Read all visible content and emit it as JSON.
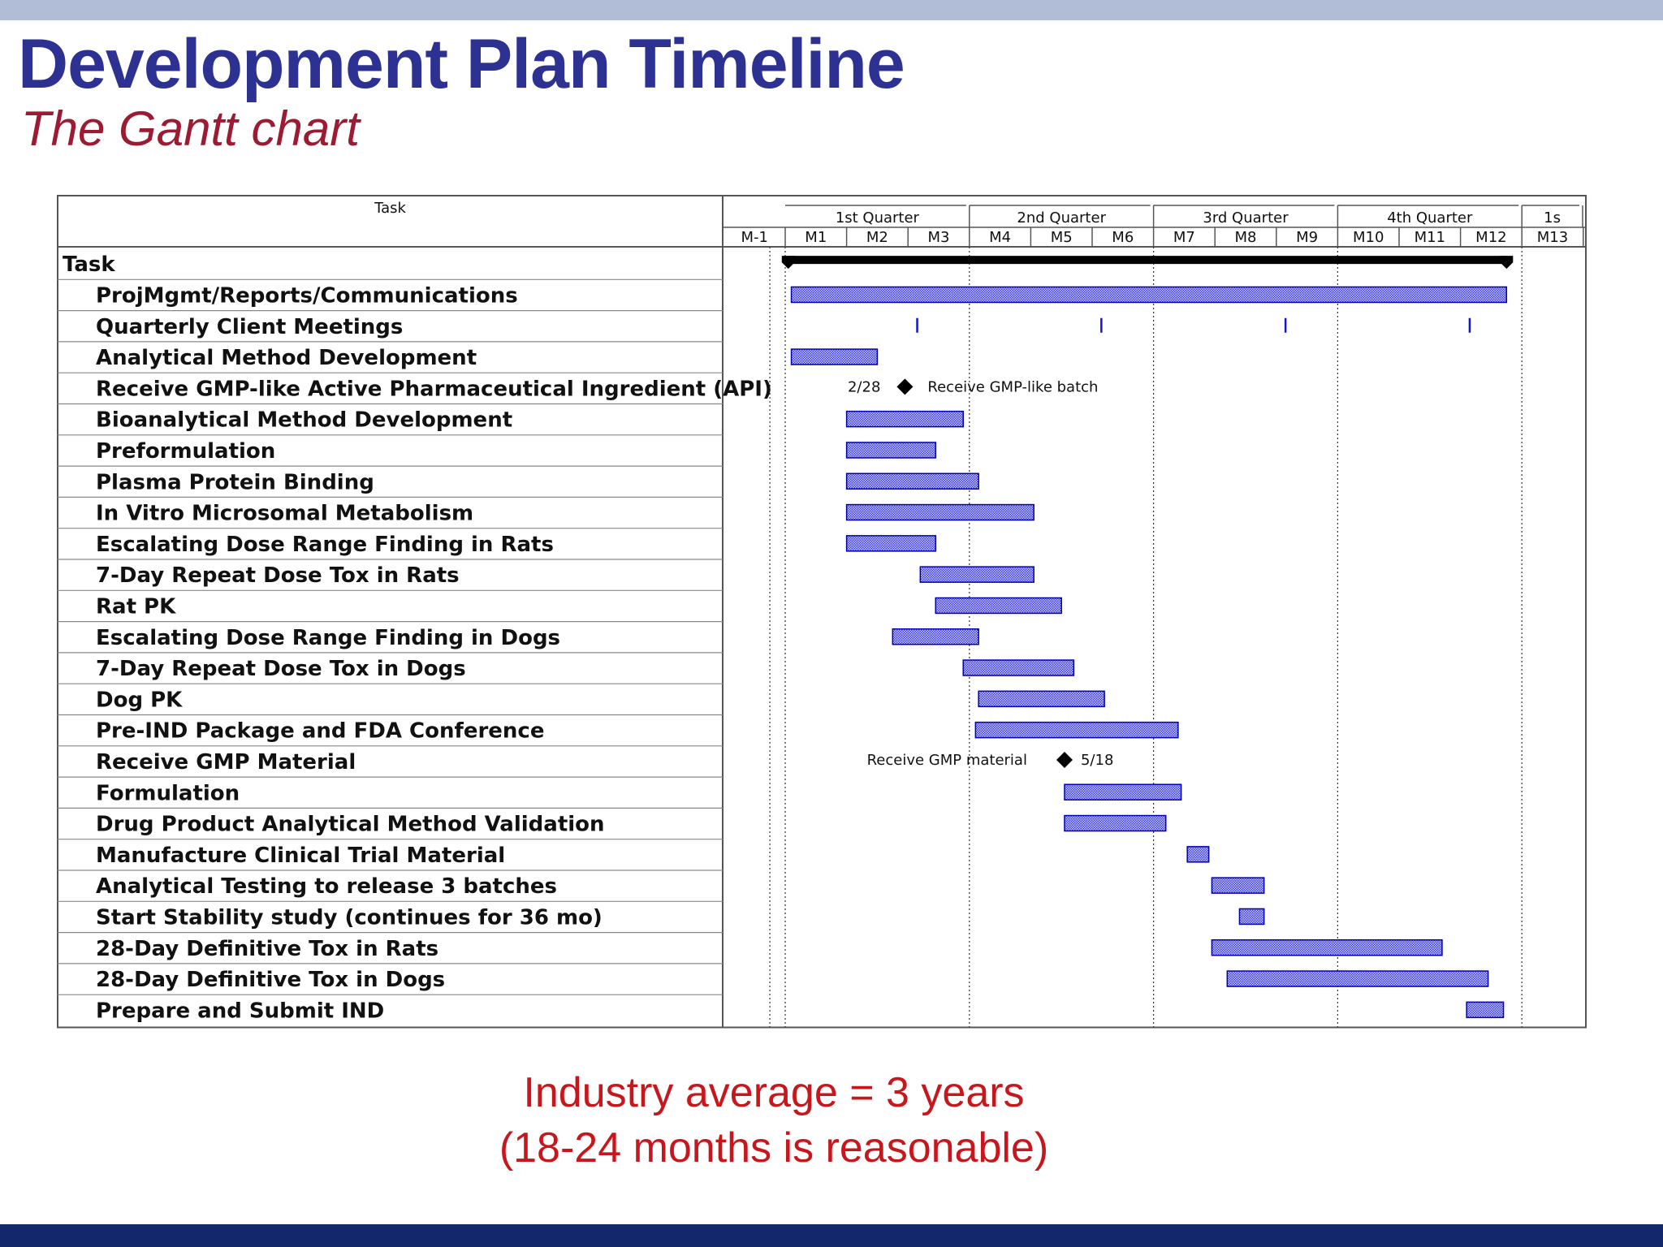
{
  "slide": {
    "title": "Development Plan Timeline",
    "subtitle": "The Gantt chart",
    "note_line1": "Industry average = 3 years",
    "note_line2": "(18-24 months is reasonable)"
  },
  "colors": {
    "title": "#2c3192",
    "subtitle": "#9c1a32",
    "note": "#c8161d",
    "top_bar": "#b1bcd6",
    "bottom_bar": "#12286b",
    "task_bar": "#3a3ae0",
    "bar_outline": "#0000b0"
  },
  "chart_data": {
    "type": "gantt",
    "task_column_header": "Task",
    "x_unit": "month",
    "xlim": [
      -1,
      13.2
    ],
    "quarters": [
      {
        "label": "1st Quarter",
        "start": 0,
        "end": 3
      },
      {
        "label": "2nd Quarter",
        "start": 3,
        "end": 6
      },
      {
        "label": "3rd Quarter",
        "start": 6,
        "end": 9
      },
      {
        "label": "4th Quarter",
        "start": 9,
        "end": 12
      },
      {
        "label": "1s",
        "start": 12,
        "end": 13.2
      }
    ],
    "months": [
      "M-1",
      "M1",
      "M2",
      "M3",
      "M4",
      "M5",
      "M6",
      "M7",
      "M8",
      "M9",
      "M10",
      "M11",
      "M12",
      "M13"
    ],
    "tasks": [
      {
        "name": "Task",
        "kind": "summary",
        "start": 0.05,
        "end": 11.75
      },
      {
        "name": "ProjMgmt/Reports/Communications",
        "kind": "bar",
        "start": 0.1,
        "end": 11.75
      },
      {
        "name": "Quarterly Client Meetings",
        "kind": "marks",
        "at": [
          2.15,
          5.15,
          8.15,
          11.15
        ]
      },
      {
        "name": "Analytical Method Development",
        "kind": "bar",
        "start": 0.1,
        "end": 1.5
      },
      {
        "name": "Receive GMP-like Active Pharmaceutical Ingredient (API)",
        "kind": "milestone",
        "at": 1.95,
        "date": "2/28",
        "note": "Receive GMP-like batch",
        "note_side": "right"
      },
      {
        "name": "Bioanalytical Method Development",
        "kind": "bar",
        "start": 1.0,
        "end": 2.9
      },
      {
        "name": "Preformulation",
        "kind": "bar",
        "start": 1.0,
        "end": 2.45
      },
      {
        "name": "Plasma Protein Binding",
        "kind": "bar",
        "start": 1.0,
        "end": 3.15
      },
      {
        "name": "In Vitro Microsomal Metabolism",
        "kind": "bar",
        "start": 1.0,
        "end": 4.05
      },
      {
        "name": "Escalating Dose Range Finding in Rats",
        "kind": "bar",
        "start": 1.0,
        "end": 2.45
      },
      {
        "name": "7-Day Repeat Dose Tox in Rats",
        "kind": "bar",
        "start": 2.2,
        "end": 4.05
      },
      {
        "name": "Rat PK",
        "kind": "bar",
        "start": 2.45,
        "end": 4.5
      },
      {
        "name": "Escalating Dose Range Finding in Dogs",
        "kind": "bar",
        "start": 1.75,
        "end": 3.15
      },
      {
        "name": "7-Day Repeat Dose Tox in Dogs",
        "kind": "bar",
        "start": 2.9,
        "end": 4.7
      },
      {
        "name": "Dog PK",
        "kind": "bar",
        "start": 3.15,
        "end": 5.2
      },
      {
        "name": "Pre-IND Package and FDA Conference",
        "kind": "bar",
        "start": 3.1,
        "end": 6.4
      },
      {
        "name": "Receive GMP Material",
        "kind": "milestone",
        "at": 4.55,
        "date": "5/18",
        "note": "Receive GMP material",
        "note_side": "left"
      },
      {
        "name": "Formulation",
        "kind": "bar",
        "start": 4.55,
        "end": 6.45
      },
      {
        "name": "Drug Product Analytical Method Validation",
        "kind": "bar",
        "start": 4.55,
        "end": 6.2
      },
      {
        "name": "Manufacture Clinical Trial Material",
        "kind": "bar",
        "start": 6.55,
        "end": 6.9
      },
      {
        "name": "Analytical Testing to release 3 batches",
        "kind": "bar",
        "start": 6.95,
        "end": 7.8
      },
      {
        "name": "Start Stability study (continues for 36 mo)",
        "kind": "bar",
        "start": 7.4,
        "end": 7.8
      },
      {
        "name": "28-Day Definitive Tox in Rats",
        "kind": "bar",
        "start": 6.95,
        "end": 10.7
      },
      {
        "name": "28-Day Definitive Tox in Dogs",
        "kind": "bar",
        "start": 7.2,
        "end": 11.45
      },
      {
        "name": "Prepare and Submit IND",
        "kind": "bar",
        "start": 11.1,
        "end": 11.7
      }
    ]
  }
}
